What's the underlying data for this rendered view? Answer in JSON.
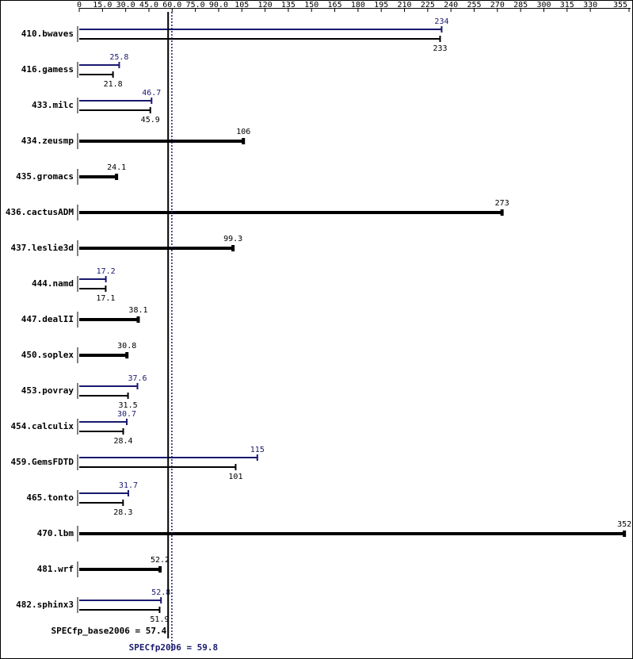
{
  "chart_data": {
    "type": "bar",
    "orientation": "horizontal",
    "categories": [
      "410.bwaves",
      "416.gamess",
      "433.milc",
      "434.zeusmp",
      "435.gromacs",
      "436.cactusADM",
      "437.leslie3d",
      "444.namd",
      "447.dealII",
      "450.soplex",
      "453.povray",
      "454.calculix",
      "459.GemsFDTD",
      "465.tonto",
      "470.lbm",
      "481.wrf",
      "482.sphinx3"
    ],
    "series": [
      {
        "color": "#000000",
        "values": [
          233,
          21.8,
          45.9,
          106,
          24.1,
          273,
          99.3,
          17.1,
          38.1,
          30.8,
          31.5,
          28.4,
          101,
          28.3,
          352,
          52.2,
          51.9
        ]
      },
      {
        "color": "#191970",
        "values": [
          234,
          25.8,
          46.7,
          null,
          null,
          null,
          null,
          17.2,
          null,
          null,
          37.6,
          30.7,
          115,
          31.7,
          null,
          null,
          52.8
        ]
      }
    ],
    "xlim": [
      0,
      355
    ],
    "xticks": [
      0,
      {
        "value": 15,
        "label": "15.0"
      },
      {
        "value": 30,
        "label": "30.0"
      },
      {
        "value": 45,
        "label": "45.0"
      },
      {
        "value": 60,
        "label": "60.0"
      },
      {
        "value": 75,
        "label": "75.0"
      },
      {
        "value": 90,
        "label": "90.0"
      },
      105,
      120,
      135,
      150,
      165,
      180,
      195,
      210,
      225,
      240,
      255,
      270,
      285,
      300,
      315,
      330,
      355
    ],
    "reference_lines": [
      {
        "text": "SPECfp_base2006 = 57.4",
        "value": 57.4,
        "color": "#000000"
      },
      {
        "text": "SPECfp2006 = 59.8",
        "value": 59.8,
        "color": "#191970"
      }
    ]
  }
}
